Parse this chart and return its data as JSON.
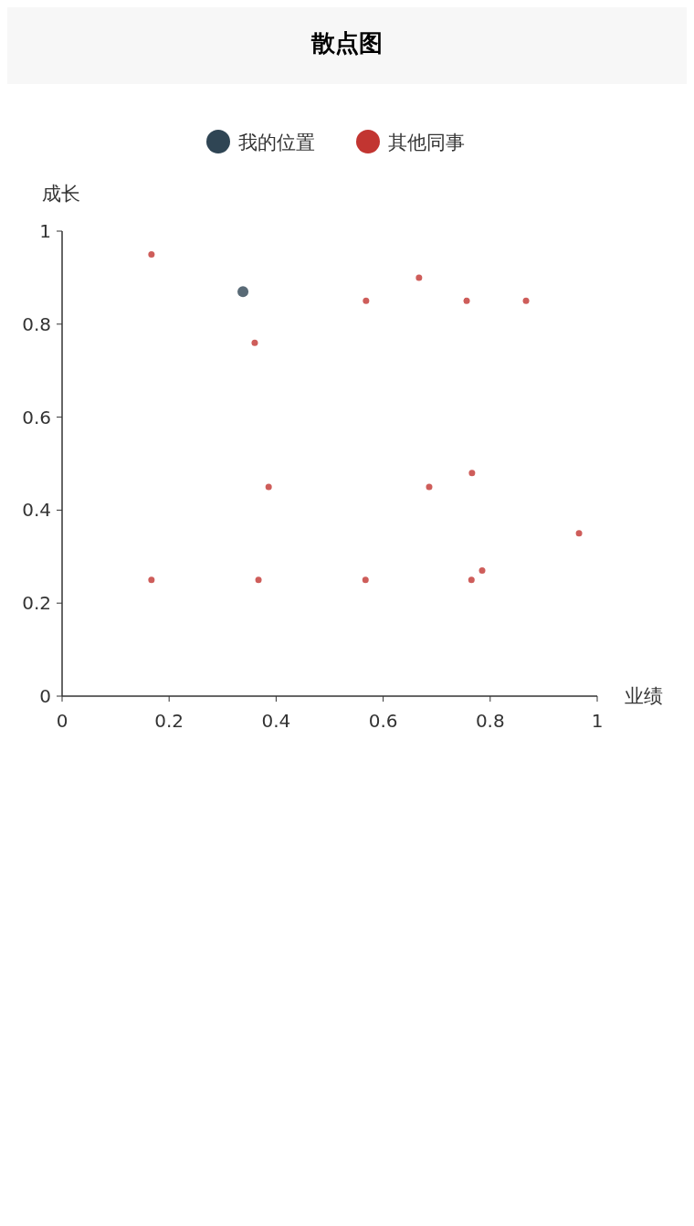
{
  "chart_data": {
    "type": "scatter",
    "title": "散点图",
    "xlabel": "业绩",
    "ylabel": "成长",
    "xlim": [
      0,
      1
    ],
    "ylim": [
      0,
      1
    ],
    "xticks": [
      0,
      0.2,
      0.4,
      0.6,
      0.8,
      1
    ],
    "yticks": [
      0,
      0.2,
      0.4,
      0.6,
      0.8,
      1
    ],
    "grid": false,
    "legend": "top",
    "marker": "circle",
    "series": [
      {
        "name": "我的位置",
        "color": "#2f4554",
        "x": [
          0.338
        ],
        "values": [
          0.87
        ]
      },
      {
        "name": "其他同事",
        "color": "#c23531",
        "x": [
          0.167,
          0.568,
          0.667,
          0.756,
          0.867,
          0.36,
          0.386,
          0.686,
          0.766,
          0.966,
          0.167,
          0.367,
          0.567,
          0.765,
          0.785
        ],
        "values": [
          0.95,
          0.85,
          0.9,
          0.85,
          0.85,
          0.76,
          0.45,
          0.45,
          0.48,
          0.35,
          0.25,
          0.25,
          0.25,
          0.25,
          0.27
        ]
      }
    ]
  }
}
